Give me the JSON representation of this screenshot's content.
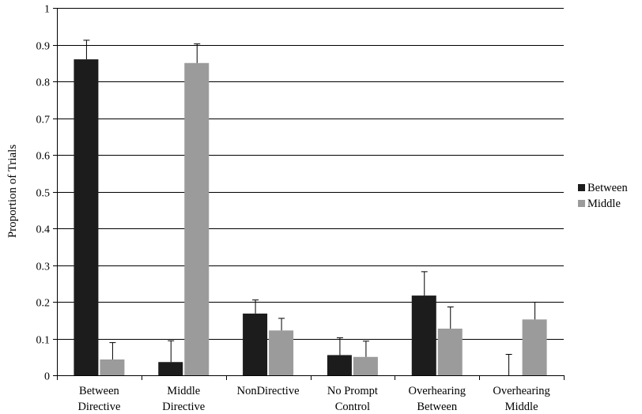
{
  "chart_data": {
    "type": "bar",
    "title": "",
    "xlabel": "",
    "ylabel": "Proportion of Trials",
    "ylim": [
      0,
      1
    ],
    "yticks": [
      "0",
      "0.1",
      "0.2",
      "0.3",
      "0.4",
      "0.5",
      "0.6",
      "0.7",
      "0.8",
      "0.9",
      "1"
    ],
    "grid": true,
    "legend_position": "right",
    "categories": [
      [
        "Between",
        "Directive"
      ],
      [
        "Middle",
        "Directive"
      ],
      [
        "NonDirective"
      ],
      [
        "No Prompt",
        "Control"
      ],
      [
        "Overhearing",
        "Between"
      ],
      [
        "Overhearing",
        "Middle"
      ]
    ],
    "series": [
      {
        "name": "Between",
        "color": "#1c1c1c",
        "values": [
          0.86,
          0.036,
          0.168,
          0.055,
          0.217,
          0.0
        ],
        "error": [
          0.052,
          0.058,
          0.037,
          0.047,
          0.065,
          0.057
        ]
      },
      {
        "name": "Middle",
        "color": "#9b9b9b",
        "values": [
          0.043,
          0.85,
          0.122,
          0.05,
          0.127,
          0.152
        ],
        "error": [
          0.046,
          0.052,
          0.033,
          0.043,
          0.059,
          0.047
        ]
      }
    ]
  }
}
